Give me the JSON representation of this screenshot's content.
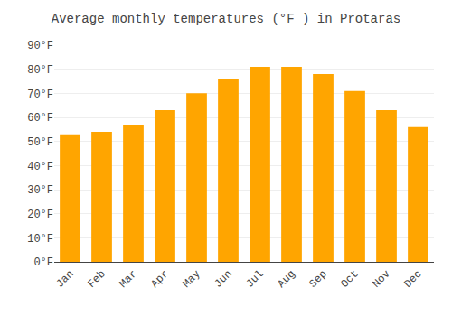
{
  "chart_data": {
    "type": "bar",
    "title": "Average monthly temperatures (°F ) in Protaras",
    "categories": [
      "Jan",
      "Feb",
      "Mar",
      "Apr",
      "May",
      "Jun",
      "Jul",
      "Aug",
      "Sep",
      "Oct",
      "Nov",
      "Dec"
    ],
    "values": [
      53,
      54,
      57,
      63,
      70,
      76,
      81,
      81,
      78,
      71,
      63,
      56
    ],
    "color": "#FFA500",
    "ylim": [
      0,
      90
    ],
    "yticks": [
      {
        "value": 0,
        "label": "0°F"
      },
      {
        "value": 10,
        "label": "10°F"
      },
      {
        "value": 20,
        "label": "20°F"
      },
      {
        "value": 30,
        "label": "30°F"
      },
      {
        "value": 40,
        "label": "40°F"
      },
      {
        "value": 50,
        "label": "50°F"
      },
      {
        "value": 60,
        "label": "60°F"
      },
      {
        "value": 70,
        "label": "70°F"
      },
      {
        "value": 80,
        "label": "80°F"
      },
      {
        "value": 90,
        "label": "90°F"
      }
    ],
    "grid": true
  }
}
